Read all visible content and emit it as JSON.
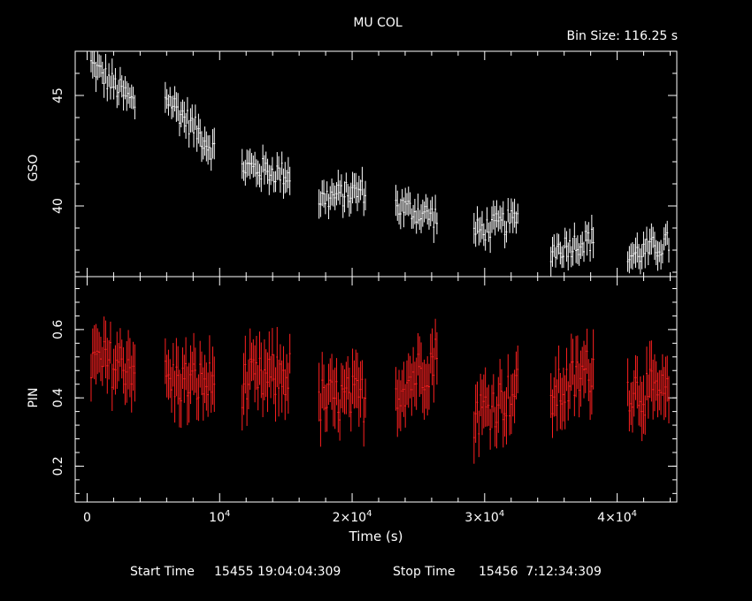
{
  "title": "MU COL",
  "bin_size_label": "Bin Size: 116.25 s",
  "footer": {
    "start_label": "Start Time",
    "start_value": "15455 19:04:04:309",
    "stop_label": "Stop Time",
    "stop_value": "15456  7:12:34:309"
  },
  "colors": {
    "background": "#000000",
    "axes": "#ffffff",
    "gso": "#ffffff",
    "pin": "#ff2020"
  },
  "chart_data": [
    {
      "type": "scatter",
      "panel": "top",
      "ylabel": "GSO",
      "xlim": [
        -900,
        44500
      ],
      "ylim": [
        36.8,
        47.0
      ],
      "yticks": [
        40,
        45
      ],
      "yticklabels": [
        "40",
        "45"
      ],
      "grid": false,
      "errorbars": true,
      "series": [
        {
          "segments": [
            {
              "x0": 300,
              "x1": 3600,
              "y0": 46.4,
              "y1": 44.6
            },
            {
              "x0": 5900,
              "x1": 9600,
              "y0": 45.0,
              "y1": 42.5
            },
            {
              "x0": 11700,
              "x1": 15300,
              "y0": 41.8,
              "y1": 41.4
            },
            {
              "x0": 17500,
              "x1": 21000,
              "y0": 40.3,
              "y1": 40.7
            },
            {
              "x0": 23300,
              "x1": 26400,
              "y0": 40.0,
              "y1": 39.5
            },
            {
              "x0": 29200,
              "x1": 32500,
              "y0": 38.8,
              "y1": 39.4
            },
            {
              "x0": 35000,
              "x1": 38200,
              "y0": 38.0,
              "y1": 38.5
            },
            {
              "x0": 40800,
              "x1": 43900,
              "y0": 37.7,
              "y1": 38.3
            }
          ]
        }
      ]
    },
    {
      "type": "scatter",
      "panel": "bottom",
      "xlabel": "Time (s)",
      "ylabel": "PIN",
      "xlim": [
        -900,
        44500
      ],
      "ylim": [
        0.095,
        0.755
      ],
      "xticks": [
        10000,
        20000,
        30000,
        40000
      ],
      "xticklabels": [
        {
          "base": "10",
          "exp": "4"
        },
        {
          "base": "2×10",
          "exp": "4"
        },
        {
          "base": "3×10",
          "exp": "4"
        },
        {
          "base": "4×10",
          "exp": "4"
        }
      ],
      "xzero_label": "0",
      "yticks": [
        0.2,
        0.4,
        0.6
      ],
      "yticklabels": [
        "0.2",
        "0.4",
        "0.6"
      ],
      "grid": false,
      "errorbars": true,
      "series": [
        {
          "segments": [
            {
              "x0": 300,
              "x1": 3600,
              "y0": 0.5,
              "y1": 0.5
            },
            {
              "x0": 5900,
              "x1": 9600,
              "y0": 0.45,
              "y1": 0.44
            },
            {
              "x0": 11700,
              "x1": 15300,
              "y0": 0.44,
              "y1": 0.47
            },
            {
              "x0": 17500,
              "x1": 21000,
              "y0": 0.39,
              "y1": 0.4
            },
            {
              "x0": 23300,
              "x1": 26400,
              "y0": 0.42,
              "y1": 0.52
            },
            {
              "x0": 29200,
              "x1": 32500,
              "y0": 0.35,
              "y1": 0.42
            },
            {
              "x0": 35000,
              "x1": 38200,
              "y0": 0.4,
              "y1": 0.49
            },
            {
              "x0": 40800,
              "x1": 43900,
              "y0": 0.43,
              "y1": 0.4
            }
          ]
        }
      ]
    }
  ]
}
